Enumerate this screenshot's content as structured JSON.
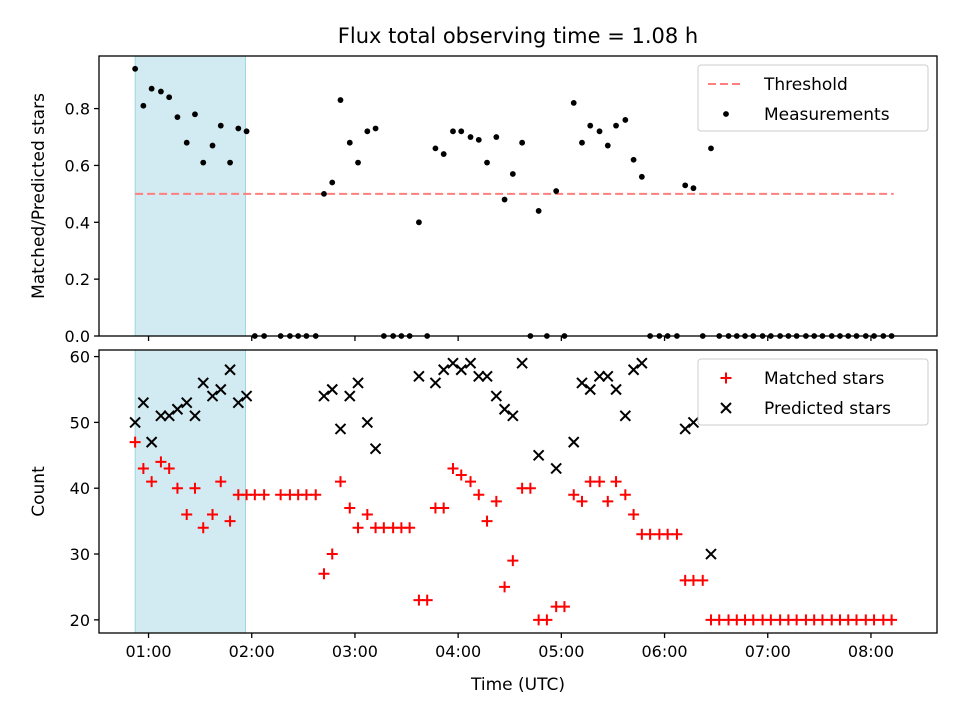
{
  "figure": {
    "title": "Flux total observing time = 1.08 h",
    "xlabel": "Time (UTC)",
    "xticks": [
      {
        "value": 1,
        "label": "01:00"
      },
      {
        "value": 2,
        "label": "02:00"
      },
      {
        "value": 3,
        "label": "03:00"
      },
      {
        "value": 4,
        "label": "04:00"
      },
      {
        "value": 5,
        "label": "05:00"
      },
      {
        "value": 6,
        "label": "06:00"
      },
      {
        "value": 7,
        "label": "07:00"
      },
      {
        "value": 8,
        "label": "08:00"
      }
    ],
    "xlim": [
      0.52,
      8.64
    ],
    "shaded_span": [
      0.87,
      1.94
    ],
    "colors": {
      "threshold": "#ff7f7f",
      "measurements": "#000000",
      "matched": "#ff0000",
      "predicted": "#000000",
      "span": "#add8e6"
    }
  },
  "chart_data": [
    {
      "type": "scatter",
      "ylabel": "Matched/Predicted stars",
      "ylim": [
        0,
        0.985
      ],
      "yticks": [
        "0.0",
        "0.2",
        "0.4",
        "0.6",
        "0.8"
      ],
      "threshold": {
        "value": 0.5,
        "x_range": [
          0.87,
          8.22
        ],
        "label": "Threshold"
      },
      "legend": [
        "Threshold",
        "Measurements"
      ],
      "legend_position": "upper-right",
      "series": [
        {
          "name": "Measurements",
          "x": [
            0.87,
            0.95,
            1.03,
            1.12,
            1.2,
            1.28,
            1.37,
            1.45,
            1.53,
            1.62,
            1.7,
            1.79,
            1.87,
            1.95,
            2.03,
            2.12,
            2.28,
            2.37,
            2.45,
            2.53,
            2.62,
            2.7,
            2.78,
            2.86,
            2.95,
            3.03,
            3.12,
            3.2,
            3.28,
            3.37,
            3.45,
            3.53,
            3.62,
            3.7,
            3.78,
            3.86,
            3.95,
            4.03,
            4.12,
            4.2,
            4.28,
            4.37,
            4.45,
            4.53,
            4.62,
            4.7,
            4.78,
            4.86,
            4.95,
            5.03,
            5.12,
            5.2,
            5.28,
            5.37,
            5.45,
            5.53,
            5.62,
            5.7,
            5.78,
            5.86,
            5.95,
            6.03,
            6.12,
            6.2,
            6.28,
            6.37,
            6.45,
            6.53,
            6.62,
            6.7,
            6.78,
            6.86,
            6.95,
            7.03,
            7.12,
            7.2,
            7.28,
            7.37,
            7.45,
            7.53,
            7.62,
            7.7,
            7.78,
            7.86,
            7.95,
            8.03,
            8.12,
            8.2
          ],
          "y": [
            0.94,
            0.81,
            0.87,
            0.86,
            0.84,
            0.77,
            0.68,
            0.78,
            0.61,
            0.67,
            0.74,
            0.61,
            0.73,
            0.72,
            0,
            0,
            0,
            0,
            0,
            0,
            0,
            0.5,
            0.54,
            0.83,
            0.68,
            0.61,
            0.72,
            0.73,
            0,
            0,
            0,
            0,
            0.4,
            0,
            0.66,
            0.64,
            0.72,
            0.72,
            0.7,
            0.69,
            0.61,
            0.7,
            0.48,
            0.57,
            0.68,
            0,
            0.44,
            0,
            0.51,
            0,
            0.82,
            0.68,
            0.74,
            0.72,
            0.67,
            0.74,
            0.76,
            0.62,
            0.56,
            0,
            0,
            0,
            0,
            0.53,
            0.52,
            0,
            0.66,
            0,
            0,
            0,
            0,
            0,
            0,
            0,
            0,
            0,
            0,
            0,
            0,
            0,
            0,
            0,
            0,
            0,
            0,
            0,
            0,
            0
          ]
        }
      ]
    },
    {
      "type": "scatter",
      "ylabel": "Count",
      "ylim": [
        18,
        61
      ],
      "yticks": [
        "20",
        "30",
        "40",
        "50",
        "60"
      ],
      "legend": [
        "Matched stars",
        "Predicted stars"
      ],
      "legend_position": "upper-right",
      "series": [
        {
          "name": "Matched stars",
          "marker": "+",
          "x": [
            0.87,
            0.95,
            1.03,
            1.12,
            1.2,
            1.28,
            1.37,
            1.45,
            1.53,
            1.62,
            1.7,
            1.79,
            1.87,
            1.95,
            2.03,
            2.12,
            2.28,
            2.37,
            2.45,
            2.53,
            2.62,
            2.7,
            2.78,
            2.86,
            2.95,
            3.03,
            3.12,
            3.2,
            3.28,
            3.37,
            3.45,
            3.53,
            3.62,
            3.7,
            3.78,
            3.86,
            3.95,
            4.03,
            4.12,
            4.2,
            4.28,
            4.37,
            4.45,
            4.53,
            4.62,
            4.7,
            4.78,
            4.86,
            4.95,
            5.03,
            5.12,
            5.2,
            5.28,
            5.37,
            5.45,
            5.53,
            5.62,
            5.7,
            5.78,
            5.86,
            5.95,
            6.03,
            6.12,
            6.2,
            6.28,
            6.37,
            6.45,
            6.53,
            6.62,
            6.7,
            6.78,
            6.86,
            6.95,
            7.03,
            7.12,
            7.2,
            7.28,
            7.37,
            7.45,
            7.53,
            7.62,
            7.7,
            7.78,
            7.86,
            7.95,
            8.03,
            8.12,
            8.2
          ],
          "y": [
            47,
            43,
            41,
            44,
            43,
            40,
            36,
            40,
            34,
            36,
            41,
            35,
            39,
            39,
            39,
            39,
            39,
            39,
            39,
            39,
            39,
            27,
            30,
            41,
            37,
            34,
            36,
            34,
            34,
            34,
            34,
            34,
            23,
            23,
            37,
            37,
            43,
            42,
            41,
            39,
            35,
            38,
            25,
            29,
            40,
            40,
            20,
            20,
            22,
            22,
            39,
            38,
            41,
            41,
            38,
            41,
            39,
            36,
            33,
            33,
            33,
            33,
            33,
            26,
            26,
            26,
            20,
            20,
            20,
            20,
            20,
            20,
            20,
            20,
            20,
            20,
            20,
            20,
            20,
            20,
            20,
            20,
            20,
            20,
            20,
            20,
            20,
            20
          ]
        },
        {
          "name": "Predicted stars",
          "marker": "x",
          "x": [
            0.87,
            0.95,
            1.03,
            1.12,
            1.2,
            1.28,
            1.37,
            1.45,
            1.53,
            1.62,
            1.7,
            1.79,
            1.87,
            1.95,
            2.7,
            2.78,
            2.86,
            2.95,
            3.03,
            3.12,
            3.2,
            3.62,
            3.78,
            3.86,
            3.95,
            4.03,
            4.12,
            4.2,
            4.28,
            4.37,
            4.45,
            4.53,
            4.62,
            4.78,
            4.95,
            5.12,
            5.2,
            5.28,
            5.37,
            5.45,
            5.53,
            5.62,
            5.7,
            5.78,
            6.2,
            6.28,
            6.45
          ],
          "y": [
            50,
            53,
            47,
            51,
            51,
            52,
            53,
            51,
            56,
            54,
            55,
            58,
            53,
            54,
            54,
            55,
            49,
            54,
            56,
            50,
            46,
            57,
            56,
            58,
            59,
            58,
            59,
            57,
            57,
            54,
            52,
            51,
            59,
            45,
            43,
            47,
            56,
            55,
            57,
            57,
            55,
            51,
            58,
            59,
            49,
            50,
            30
          ]
        }
      ]
    }
  ]
}
